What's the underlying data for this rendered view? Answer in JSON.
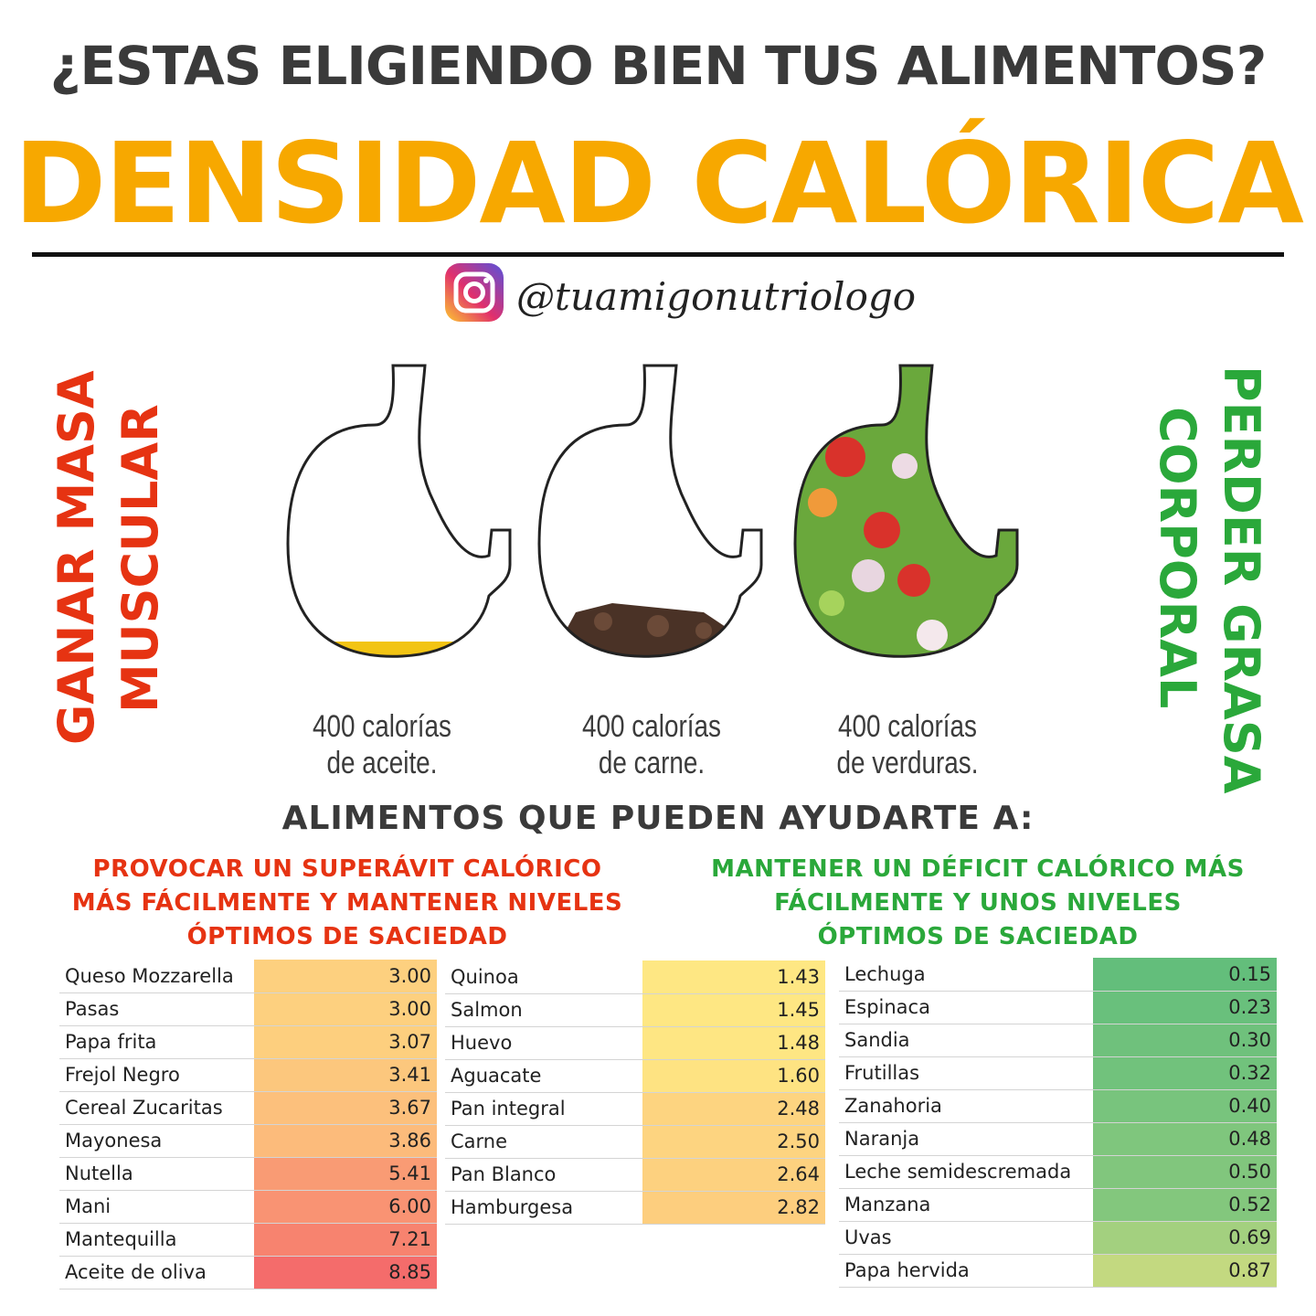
{
  "header": {
    "question": "¿ESTAS ELIGIENDO BIEN TUS ALIMENTOS?",
    "title": "DENSIDAD CALÓRICA",
    "handle": "@tuamigonutriologo"
  },
  "side": {
    "left": [
      "GANAR MASA",
      "MUSCULAR"
    ],
    "right": [
      "PERDER GRASA",
      "CORPORAL"
    ]
  },
  "stomachs": [
    {
      "lines": [
        "400 calorías",
        "de aceite."
      ]
    },
    {
      "lines": [
        "400 calorías",
        "de carne."
      ]
    },
    {
      "lines": [
        "400 calorías",
        "de verduras."
      ]
    }
  ],
  "subheading": "ALIMENTOS QUE PUEDEN AYUDARTE A:",
  "goals": {
    "surplus": [
      "PROVOCAR UN SUPERÁVIT CALÓRICO",
      "MÁS FÁCILMENTE Y MANTENER NIVELES",
      "ÓPTIMOS DE SACIEDAD"
    ],
    "deficit": [
      "MANTENER UN DÉFICIT CALÓRICO MÁS",
      "FÁCILMENTE Y UNOS NIVELES",
      "ÓPTIMOS DE SACIEDAD"
    ]
  },
  "tables": [
    {
      "rows": [
        {
          "name": "Queso Mozzarella",
          "value": "3.00",
          "color": "#fdd07f"
        },
        {
          "name": "Pasas",
          "value": "3.00",
          "color": "#fdd07f"
        },
        {
          "name": "Papa frita",
          "value": "3.07",
          "color": "#fdcf7e"
        },
        {
          "name": "Frejol Negro",
          "value": "3.41",
          "color": "#fcc77d"
        },
        {
          "name": "Cereal Zucaritas",
          "value": "3.67",
          "color": "#fcc07c"
        },
        {
          "name": "Mayonesa",
          "value": "3.86",
          "color": "#fcbb7b"
        },
        {
          "name": "Nutella",
          "value": "5.41",
          "color": "#f99b74"
        },
        {
          "name": "Mani",
          "value": "6.00",
          "color": "#f99373"
        },
        {
          "name": "Mantequilla",
          "value": "7.21",
          "color": "#f7836f"
        },
        {
          "name": "Aceite de oliva",
          "value": "8.85",
          "color": "#f46c6b"
        }
      ]
    },
    {
      "rows": [
        {
          "name": "Quinoa",
          "value": "1.43",
          "color": "#fee783"
        },
        {
          "name": "Salmon",
          "value": "1.45",
          "color": "#fee783"
        },
        {
          "name": "Huevo",
          "value": "1.48",
          "color": "#fee683"
        },
        {
          "name": "Aguacate",
          "value": "1.60",
          "color": "#fee382"
        },
        {
          "name": "Pan integral",
          "value": "2.48",
          "color": "#fdd480"
        },
        {
          "name": "Carne",
          "value": "2.50",
          "color": "#fdd480"
        },
        {
          "name": "Pan Blanco",
          "value": "2.64",
          "color": "#fdd17f"
        },
        {
          "name": "Hamburgesa",
          "value": "2.82",
          "color": "#fdce7e"
        }
      ]
    },
    {
      "rows": [
        {
          "name": "Lechuga",
          "value": "0.15",
          "color": "#63be7b"
        },
        {
          "name": "Espinaca",
          "value": "0.23",
          "color": "#69c07c"
        },
        {
          "name": "Sandia",
          "value": "0.30",
          "color": "#6fc17c"
        },
        {
          "name": "Frutillas",
          "value": "0.32",
          "color": "#71c27c"
        },
        {
          "name": "Zanahoria",
          "value": "0.40",
          "color": "#78c47d"
        },
        {
          "name": "Naranja",
          "value": "0.48",
          "color": "#7fc67d"
        },
        {
          "name": "Leche semidescremada",
          "value": "0.50",
          "color": "#81c67d"
        },
        {
          "name": "Manzana",
          "value": "0.52",
          "color": "#83c77d"
        },
        {
          "name": "Uvas",
          "value": "0.69",
          "color": "#a3d07f"
        },
        {
          "name": "Papa hervida",
          "value": "0.87",
          "color": "#c3d980"
        }
      ]
    }
  ]
}
